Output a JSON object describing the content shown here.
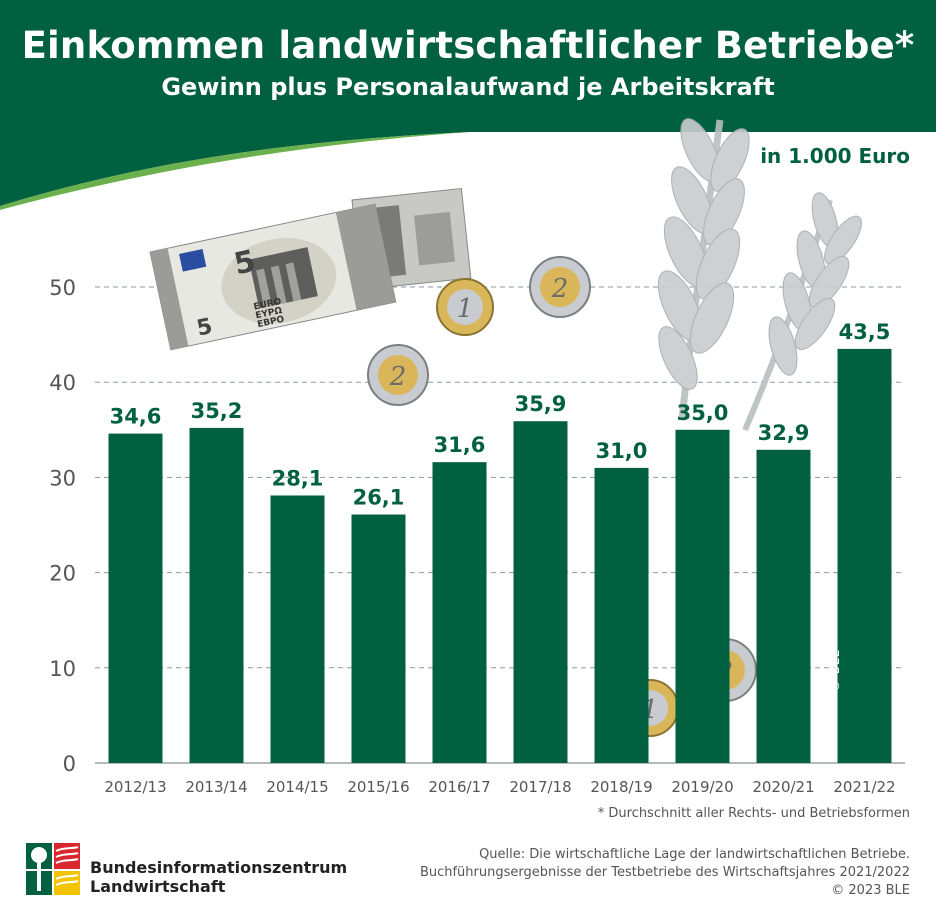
{
  "header": {
    "title": "Einkommen landwirtschaftlicher Betriebe*",
    "subtitle": "Gewinn plus Personalaufwand je Arbeitskraft"
  },
  "unit_label": "in 1.000 Euro",
  "footnote": "* Durchschnitt aller Rechts- und Betriebsformen",
  "source_lines": [
    "Quelle: Die wirtschaftliche Lage der landwirtschaftlichen Betriebe.",
    "Buchführungsergebnisse der Testbetriebe des Wirtschaftsjahres 2021/2022",
    "© 2023 BLE"
  ],
  "logo": {
    "line1": "Bundesinformationszentrum",
    "line2": "Landwirtschaft"
  },
  "copyright_vertical": "© BLE",
  "decor": {
    "banknote_value": "5",
    "banknote_euro": "EURO",
    "banknote_greek": "ΕΥΡΩ",
    "banknote_cyr": "ЕВРО",
    "coin1": "1",
    "coin2": "2"
  },
  "colors": {
    "brand_green": "#00603f",
    "bar": "#00603f",
    "grid": "#8a9aa6",
    "axis_text": "#555555"
  },
  "chart_data": {
    "type": "bar",
    "title": "Einkommen landwirtschaftlicher Betriebe*",
    "subtitle": "Gewinn plus Personalaufwand je Arbeitskraft",
    "ylabel": "in 1.000 Euro",
    "categories": [
      "2012/13",
      "2013/14",
      "2014/15",
      "2015/16",
      "2016/17",
      "2017/18",
      "2018/19",
      "2019/20",
      "2020/21",
      "2021/22"
    ],
    "values": [
      34.6,
      35.2,
      28.1,
      26.1,
      31.6,
      35.9,
      31.0,
      35.0,
      32.9,
      43.5
    ],
    "value_labels": [
      "34,6",
      "35,2",
      "28,1",
      "26,1",
      "31,6",
      "35,9",
      "31,0",
      "35,0",
      "32,9",
      "43,5"
    ],
    "yticks": [
      0,
      10,
      20,
      30,
      40,
      50
    ],
    "ylim": [
      0,
      50
    ],
    "grid": true,
    "legend": "none"
  }
}
